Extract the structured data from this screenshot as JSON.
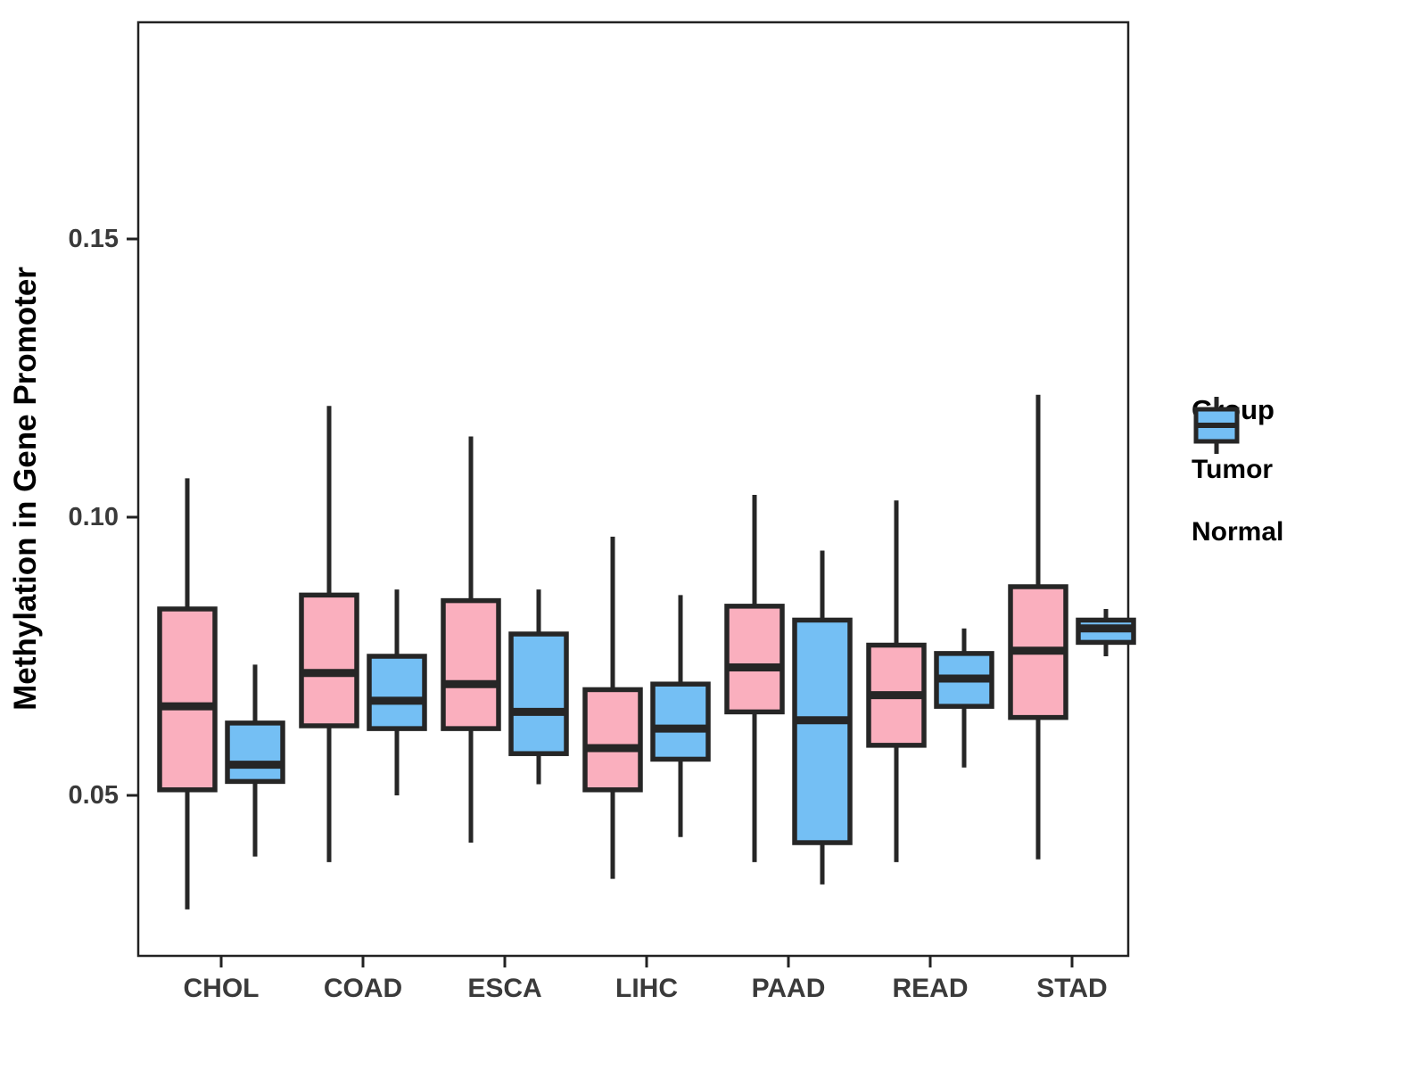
{
  "chart_data": {
    "type": "boxplot",
    "title": "",
    "xlabel": "",
    "ylabel": "Methylation in Gene Promoter",
    "categories": [
      "CHOL",
      "COAD",
      "ESCA",
      "LIHC",
      "PAAD",
      "READ",
      "STAD"
    ],
    "y_ticks": [
      0.05,
      0.1,
      0.15
    ],
    "y_tick_labels": [
      "0.05",
      "0.10",
      "0.15"
    ],
    "ylim": [
      0.022,
      0.188
    ],
    "grid": "off",
    "legend": {
      "title": "Group",
      "position": "right"
    },
    "groups": [
      {
        "name": "Tumor",
        "color": "#FAAFBE"
      },
      {
        "name": "Normal",
        "color": "#74BFF4"
      }
    ],
    "stroke_color": "#262626",
    "axis_text_color": "#3a3a3a",
    "series": [
      {
        "name": "Tumor",
        "boxes": [
          {
            "category": "CHOL",
            "low": 0.0295,
            "q1": 0.051,
            "median": 0.066,
            "q3": 0.0835,
            "high": 0.107
          },
          {
            "category": "COAD",
            "low": 0.038,
            "q1": 0.0625,
            "median": 0.072,
            "q3": 0.086,
            "high": 0.12
          },
          {
            "category": "ESCA",
            "low": 0.0415,
            "q1": 0.062,
            "median": 0.07,
            "q3": 0.085,
            "high": 0.1145
          },
          {
            "category": "LIHC",
            "low": 0.035,
            "q1": 0.051,
            "median": 0.0585,
            "q3": 0.069,
            "high": 0.0965
          },
          {
            "category": "PAAD",
            "low": 0.038,
            "q1": 0.065,
            "median": 0.073,
            "q3": 0.084,
            "high": 0.104
          },
          {
            "category": "READ",
            "low": 0.038,
            "q1": 0.059,
            "median": 0.068,
            "q3": 0.077,
            "high": 0.103
          },
          {
            "category": "STAD",
            "low": 0.0385,
            "q1": 0.064,
            "median": 0.076,
            "q3": 0.0875,
            "high": 0.122
          }
        ]
      },
      {
        "name": "Normal",
        "boxes": [
          {
            "category": "CHOL",
            "low": 0.039,
            "q1": 0.0525,
            "median": 0.0555,
            "q3": 0.063,
            "high": 0.0735
          },
          {
            "category": "COAD",
            "low": 0.05,
            "q1": 0.062,
            "median": 0.067,
            "q3": 0.075,
            "high": 0.087
          },
          {
            "category": "ESCA",
            "low": 0.052,
            "q1": 0.0575,
            "median": 0.065,
            "q3": 0.079,
            "high": 0.087
          },
          {
            "category": "LIHC",
            "low": 0.0425,
            "q1": 0.0565,
            "median": 0.062,
            "q3": 0.07,
            "high": 0.086
          },
          {
            "category": "PAAD",
            "low": 0.034,
            "q1": 0.0415,
            "median": 0.0635,
            "q3": 0.0815,
            "high": 0.094
          },
          {
            "category": "READ",
            "low": 0.055,
            "q1": 0.066,
            "median": 0.071,
            "q3": 0.0755,
            "high": 0.08
          },
          {
            "category": "STAD",
            "low": 0.075,
            "q1": 0.0775,
            "median": 0.08,
            "q3": 0.0815,
            "high": 0.0835
          }
        ]
      }
    ]
  }
}
